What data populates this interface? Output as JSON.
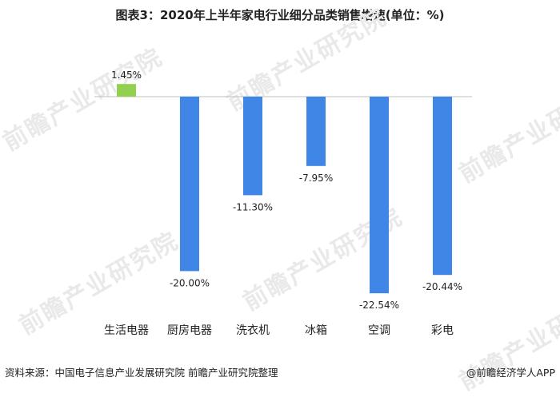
{
  "chart_data": {
    "type": "bar",
    "title": "图表3：2020年上半年家电行业细分品类销售增速(单位：%)",
    "categories": [
      "生活电器",
      "厨房电器",
      "洗衣机",
      "冰箱",
      "空调",
      "彩电"
    ],
    "values": [
      1.45,
      -20.0,
      -11.3,
      -7.95,
      -22.54,
      -20.44
    ],
    "value_labels": [
      "1.45%",
      "-20.00%",
      "-11.30%",
      "-7.95%",
      "-22.54%",
      "-20.44%"
    ],
    "colors": {
      "positive": "#92d050",
      "negative": "#3f86e6"
    },
    "xlabel": "",
    "ylabel": "",
    "grid": false
  },
  "footer": {
    "source": "资料来源：中国电子信息产业发展研究院 前瞻产业研究院整理",
    "brand": "@前瞻经济学人APP"
  },
  "watermark": "前瞻产业研究院"
}
